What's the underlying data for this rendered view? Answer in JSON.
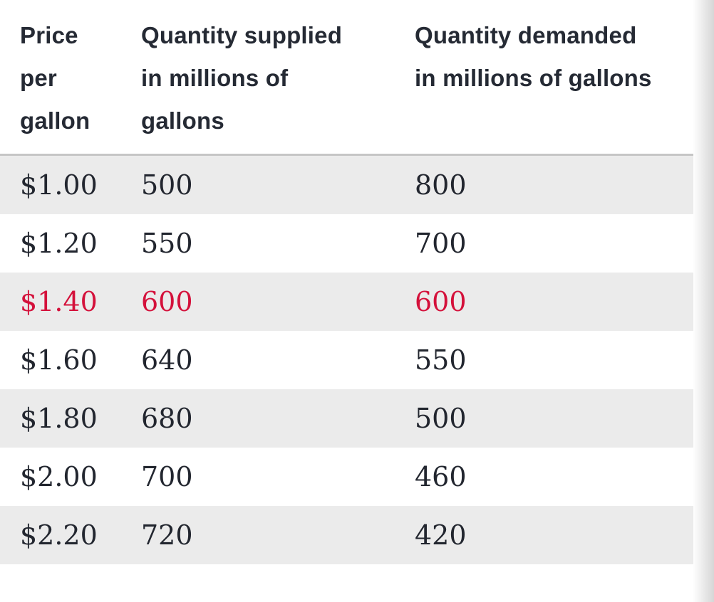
{
  "colors": {
    "header_text": "#252a34",
    "body_text": "#22262f",
    "highlight_text": "#d4113b",
    "row_shade": "#ebebeb",
    "top_border": "#c6c6c6"
  },
  "table": {
    "columns": [
      {
        "id": "price",
        "header_lines": [
          "Price",
          "per",
          "gallon"
        ]
      },
      {
        "id": "supplied",
        "header_lines": [
          "Quantity supplied",
          "in millions of",
          "gallons"
        ]
      },
      {
        "id": "demanded",
        "header_lines": [
          "Quantity demanded",
          "in millions of gallons"
        ]
      }
    ],
    "rows": [
      {
        "price": "$1.00",
        "supplied": "500",
        "demanded": "800",
        "highlight": false
      },
      {
        "price": "$1.20",
        "supplied": "550",
        "demanded": "700",
        "highlight": false
      },
      {
        "price": "$1.40",
        "supplied": "600",
        "demanded": "600",
        "highlight": true
      },
      {
        "price": "$1.60",
        "supplied": "640",
        "demanded": "550",
        "highlight": false
      },
      {
        "price": "$1.80",
        "supplied": "680",
        "demanded": "500",
        "highlight": false
      },
      {
        "price": "$2.00",
        "supplied": "700",
        "demanded": "460",
        "highlight": false
      },
      {
        "price": "$2.20",
        "supplied": "720",
        "demanded": "420",
        "highlight": false
      }
    ]
  },
  "chart_data": {
    "type": "table",
    "title": "",
    "columns": [
      "Price per gallon",
      "Quantity supplied in millions of gallons",
      "Quantity demanded in millions of gallons"
    ],
    "rows": [
      [
        "$1.00",
        "500",
        "800"
      ],
      [
        "$1.20",
        "550",
        "700"
      ],
      [
        "$1.40",
        "600",
        "600"
      ],
      [
        "$1.60",
        "640",
        "550"
      ],
      [
        "$1.80",
        "680",
        "500"
      ],
      [
        "$2.00",
        "700",
        "460"
      ],
      [
        "$2.20",
        "720",
        "420"
      ]
    ],
    "highlighted_row_index": 2,
    "highlight_meaning": "row rendered in red text ($1.40 — quantity supplied equals quantity demanded)",
    "layout_hints": {
      "zebra_striping": "rows 1,3,5,7 shaded light gray",
      "header_separator": "gray rule under header",
      "right_edge": "scroll fade gradient"
    }
  }
}
